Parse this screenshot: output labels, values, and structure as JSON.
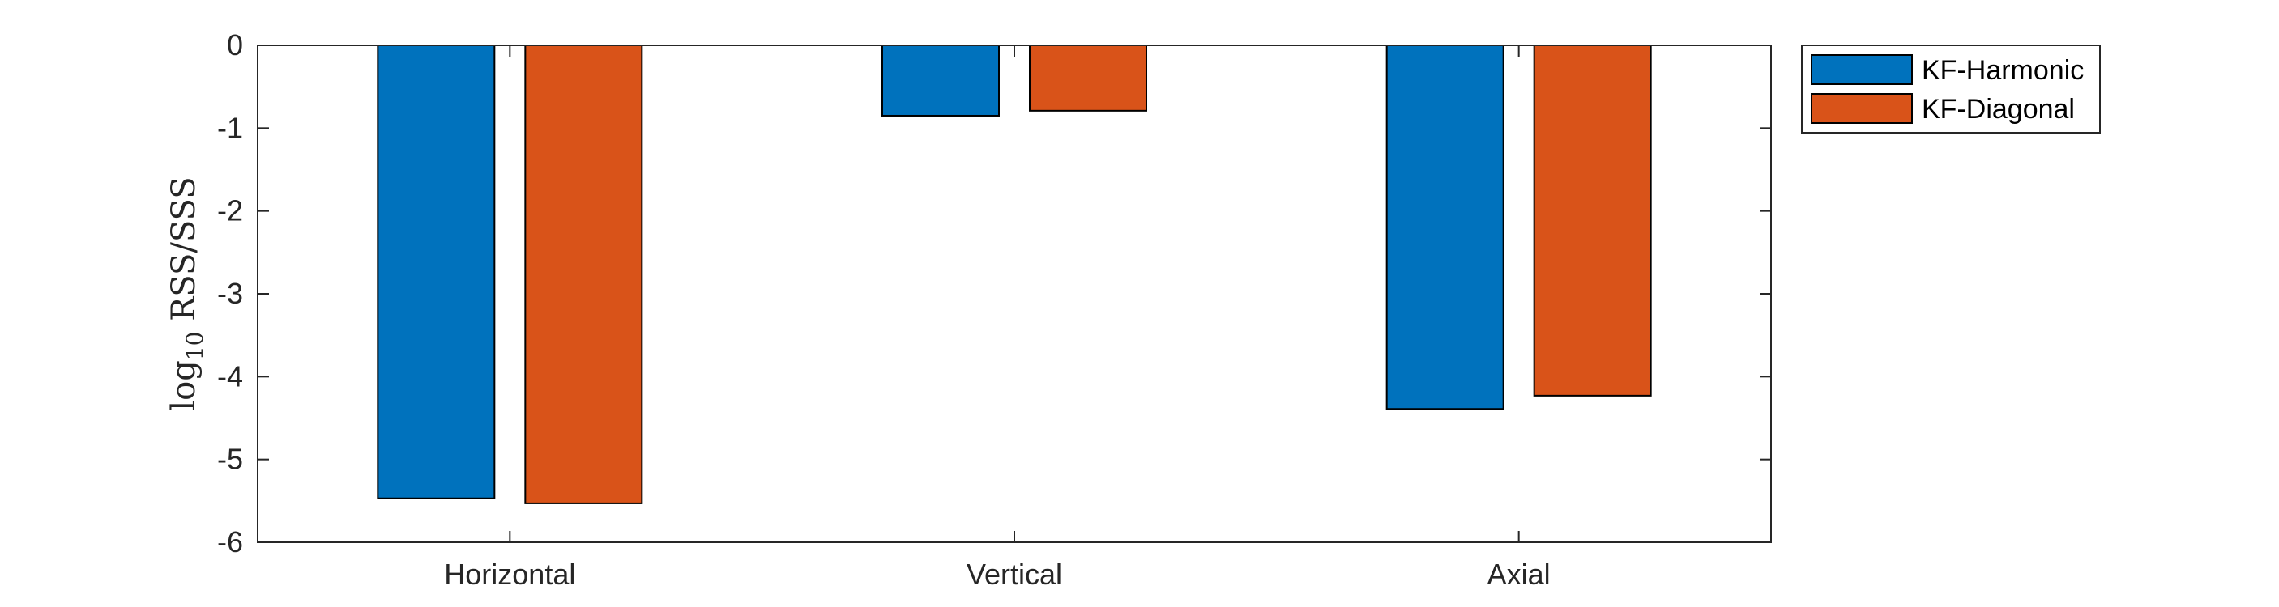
{
  "chart_data": {
    "type": "bar",
    "categories": [
      "Horizontal",
      "Vertical",
      "Axial"
    ],
    "series": [
      {
        "name": "KF-Harmonic",
        "values": [
          -5.47,
          -0.85,
          -4.39
        ],
        "color": "#0072BD"
      },
      {
        "name": "KF-Diagonal",
        "values": [
          -5.53,
          -0.79,
          -4.23
        ],
        "color": "#D95319"
      }
    ],
    "ylabel": {
      "prefix": "log",
      "subscript": "10",
      "rest": " RSS/SSS"
    },
    "ylim": [
      -6,
      0
    ],
    "yticks": [
      0,
      -1,
      -2,
      -3,
      -4,
      -5,
      -6
    ],
    "ytick_labels": [
      "0",
      "-1",
      "-2",
      "-3",
      "-4",
      "-5",
      "-6"
    ],
    "grid": false,
    "legend": {
      "position": "top-right-outside"
    }
  }
}
